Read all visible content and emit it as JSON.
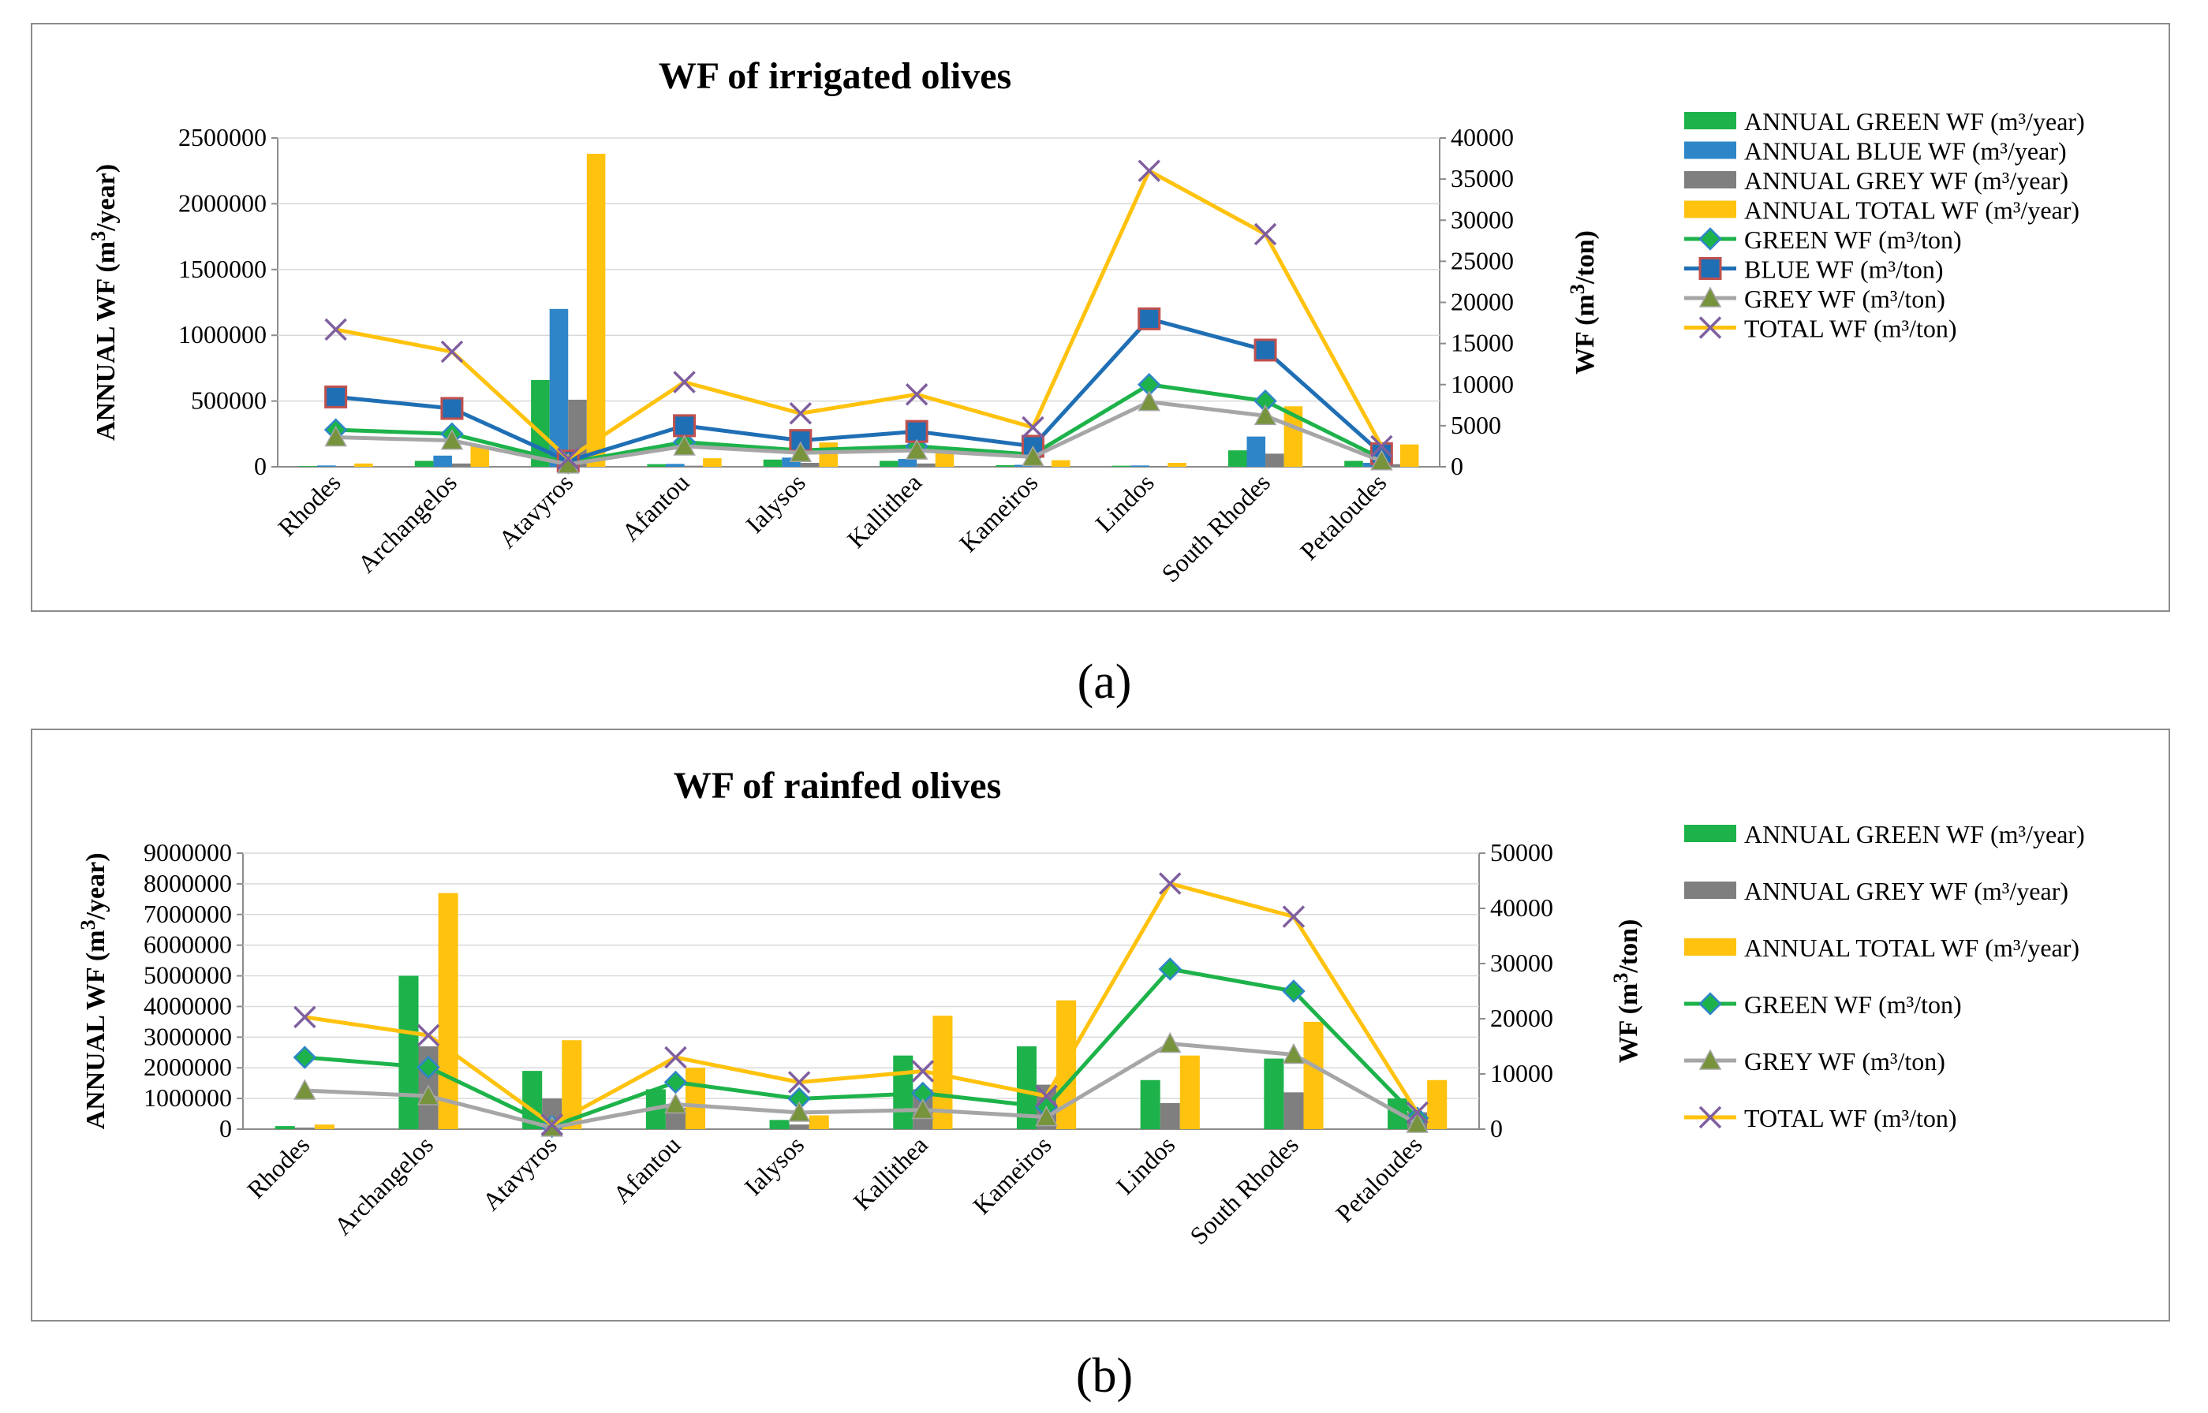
{
  "chart_data": [
    {
      "type": "bar",
      "panel_label": "(a)",
      "title": "WF of irrigated olives",
      "categories": [
        "Rhodes",
        "Archangelos",
        "Atavyros",
        "Afantou",
        "Ialysos",
        "Kallithea",
        "Kameiros",
        "Lindos",
        "South Rhodes",
        "Petaloudes"
      ],
      "ylabel_left": "ANNUAL WF (m",
      "ylabel_left_sup": "3",
      "ylabel_left_end": "/year)",
      "ylabel_right": "WF (m",
      "ylabel_right_sup": "3",
      "ylabel_right_end": "/ton)",
      "ylim_left": [
        0,
        2500000
      ],
      "yticks_left": [
        "0",
        "500000",
        "1000000",
        "1500000",
        "2000000",
        "2500000"
      ],
      "ylim_right": [
        0,
        40000
      ],
      "yticks_right": [
        "0",
        "5000",
        "10000",
        "15000",
        "20000",
        "25000",
        "30000",
        "35000",
        "40000"
      ],
      "bar_series": [
        {
          "name": "ANNUAL GREEN WF (m³/year)",
          "color": "#1db34a",
          "values": [
            5000,
            45000,
            660000,
            20000,
            55000,
            45000,
            12000,
            8000,
            125000,
            45000
          ]
        },
        {
          "name": "ANNUAL BLUE WF  (m³/year)",
          "color": "#2e86c8",
          "values": [
            10000,
            85000,
            1200000,
            22000,
            70000,
            60000,
            15000,
            10000,
            230000,
            30000
          ]
        },
        {
          "name": "ANNUAL GREY WF  (m³/year)",
          "color": "#7f7f7f",
          "values": [
            5000,
            25000,
            510000,
            8000,
            30000,
            25000,
            5000,
            4000,
            100000,
            20000
          ]
        },
        {
          "name": "ANNUAL TOTAL WF (m³/year)",
          "color": "#ffc20e",
          "values": [
            25000,
            160000,
            2380000,
            65000,
            185000,
            140000,
            50000,
            30000,
            460000,
            170000
          ]
        }
      ],
      "line_series": [
        {
          "name": "GREEN WF (m³/ton)",
          "color": "#1db34a",
          "marker": "diamond",
          "values": [
            4500,
            4000,
            500,
            3000,
            2000,
            2500,
            1500,
            10000,
            8000,
            1000
          ]
        },
        {
          "name": "BLUE WF (m³/ton)",
          "color": "#1f6fb5",
          "marker": "square",
          "values": [
            8500,
            7100,
            700,
            5000,
            3200,
            4300,
            2500,
            18000,
            14200,
            1600
          ]
        },
        {
          "name": "GREY WF (m³/ton)",
          "color": "#a6a6a6",
          "marker": "triangle",
          "values": [
            3600,
            3200,
            300,
            2500,
            1700,
            2000,
            1200,
            7900,
            6200,
            700
          ]
        },
        {
          "name": "TOTAL WF (m³/ton)",
          "color": "#ffc20e",
          "marker": "x",
          "values": [
            16700,
            14000,
            1000,
            10300,
            6500,
            8800,
            4800,
            36000,
            28300,
            2500
          ]
        }
      ]
    },
    {
      "type": "bar",
      "panel_label": "(b)",
      "title": "WF of rainfed olives",
      "categories": [
        "Rhodes",
        "Archangelos",
        "Atavyros",
        "Afantou",
        "Ialysos",
        "Kallithea",
        "Kameiros",
        "Lindos",
        "South Rhodes",
        "Petaloudes"
      ],
      "ylabel_left": "ANNUAL WF (m",
      "ylabel_left_sup": "3",
      "ylabel_left_end": "/year)",
      "ylabel_right": "WF (m",
      "ylabel_right_sup": "3",
      "ylabel_right_end": "/ton)",
      "ylim_left": [
        0,
        9000000
      ],
      "yticks_left": [
        "0",
        "1000000",
        "2000000",
        "3000000",
        "4000000",
        "5000000",
        "6000000",
        "7000000",
        "8000000",
        "9000000"
      ],
      "ylim_right": [
        0,
        50000
      ],
      "yticks_right": [
        "0",
        "10000",
        "20000",
        "30000",
        "40000",
        "50000"
      ],
      "bar_series": [
        {
          "name": "ANNUAL GREEN WF (m³/year)",
          "color": "#1db34a",
          "values": [
            100000,
            5000000,
            1900000,
            1300000,
            300000,
            2400000,
            2700000,
            1600000,
            2300000,
            1000000
          ]
        },
        {
          "name": "ANNUAL GREY WF  (m³/year)",
          "color": "#7f7f7f",
          "values": [
            50000,
            2700000,
            1000000,
            700000,
            150000,
            1300000,
            1450000,
            850000,
            1200000,
            550000
          ]
        },
        {
          "name": "ANNUAL TOTAL WF (m³/year)",
          "color": "#ffc20e",
          "values": [
            150000,
            7700000,
            2900000,
            2000000,
            450000,
            3700000,
            4200000,
            2400000,
            3500000,
            1600000
          ]
        }
      ],
      "line_series": [
        {
          "name": "GREEN WF (m³/ton)",
          "color": "#1db34a",
          "marker": "diamond",
          "values": [
            13000,
            11200,
            500,
            8500,
            5500,
            6500,
            4000,
            29000,
            25000,
            2000
          ]
        },
        {
          "name": "GREY WF (m³/ton)",
          "color": "#a6a6a6",
          "marker": "triangle",
          "values": [
            7000,
            6000,
            300,
            4500,
            3000,
            3500,
            2200,
            15500,
            13500,
            1000
          ]
        },
        {
          "name": "TOTAL WF (m³/ton)",
          "color": "#ffc20e",
          "marker": "x",
          "values": [
            20300,
            17000,
            800,
            13000,
            8500,
            10500,
            6000,
            44500,
            38500,
            3000
          ]
        }
      ]
    }
  ]
}
